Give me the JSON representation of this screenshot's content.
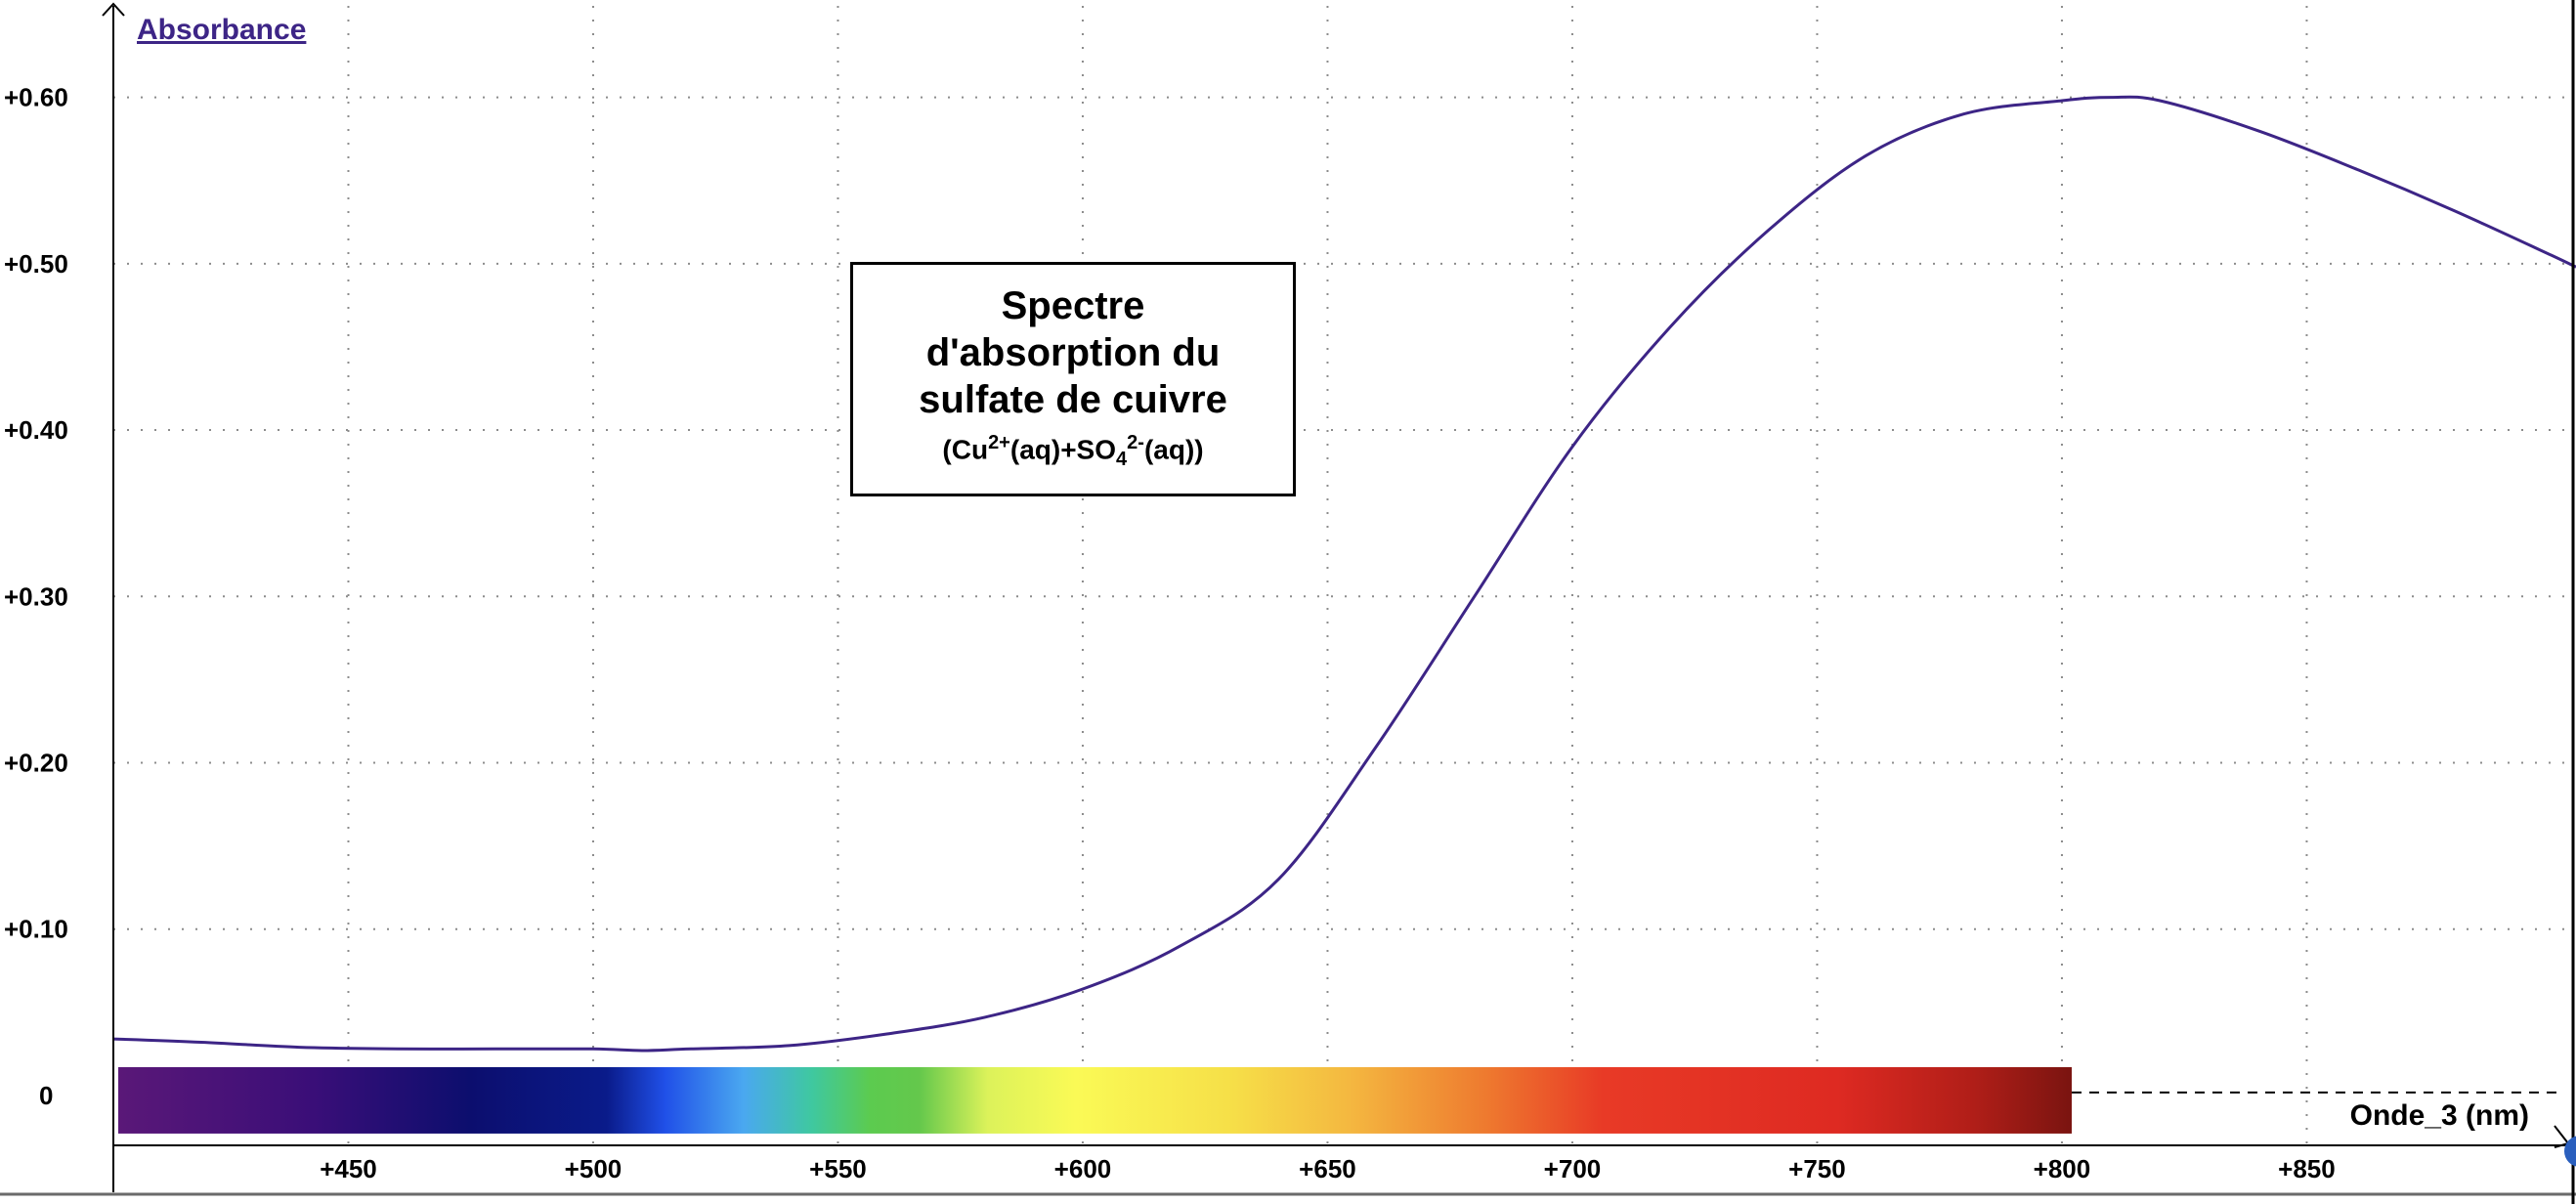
{
  "chart_data": {
    "type": "line",
    "ylabel": "Absorbance",
    "xlabel": "Onde_3 (nm)",
    "title_lines": [
      "Spectre",
      "d'absorption du",
      "sulfate de cuivre"
    ],
    "formula": {
      "p1": "(Cu",
      "p2": "2+",
      "p3": "(aq)+SO",
      "p4": "4",
      "p5": "2-",
      "p6": "(aq))"
    },
    "xlim": [
      402,
      905
    ],
    "ylim": [
      -0.03,
      0.655
    ],
    "x_ticks": [
      450,
      500,
      550,
      600,
      650,
      700,
      750,
      800,
      850
    ],
    "x_tick_labels": [
      "+450",
      "+500",
      "+550",
      "+600",
      "+650",
      "+700",
      "+750",
      "+800",
      "+850"
    ],
    "y_ticks": [
      0,
      0.1,
      0.2,
      0.3,
      0.4,
      0.5,
      0.6
    ],
    "y_tick_labels": [
      "0",
      "+0.10",
      "+0.20",
      "+0.30",
      "+0.40",
      "+0.50",
      "+0.60"
    ],
    "grid": true,
    "spectrum_band": {
      "x_range": [
        403,
        802
      ]
    },
    "series": [
      {
        "color": "#3d2586",
        "x": [
          402,
          420,
          440,
          460,
          480,
          500,
          510,
          520,
          540,
          560,
          580,
          600,
          620,
          640,
          660,
          680,
          700,
          720,
          740,
          760,
          780,
          800,
          810,
          820,
          840,
          860,
          880,
          900,
          905
        ],
        "y": [
          0.034,
          0.032,
          0.029,
          0.028,
          0.028,
          0.028,
          0.027,
          0.028,
          0.03,
          0.037,
          0.047,
          0.064,
          0.09,
          0.13,
          0.21,
          0.3,
          0.39,
          0.462,
          0.52,
          0.565,
          0.59,
          0.598,
          0.6,
          0.598,
          0.58,
          0.557,
          0.532,
          0.505,
          0.498
        ]
      }
    ]
  }
}
